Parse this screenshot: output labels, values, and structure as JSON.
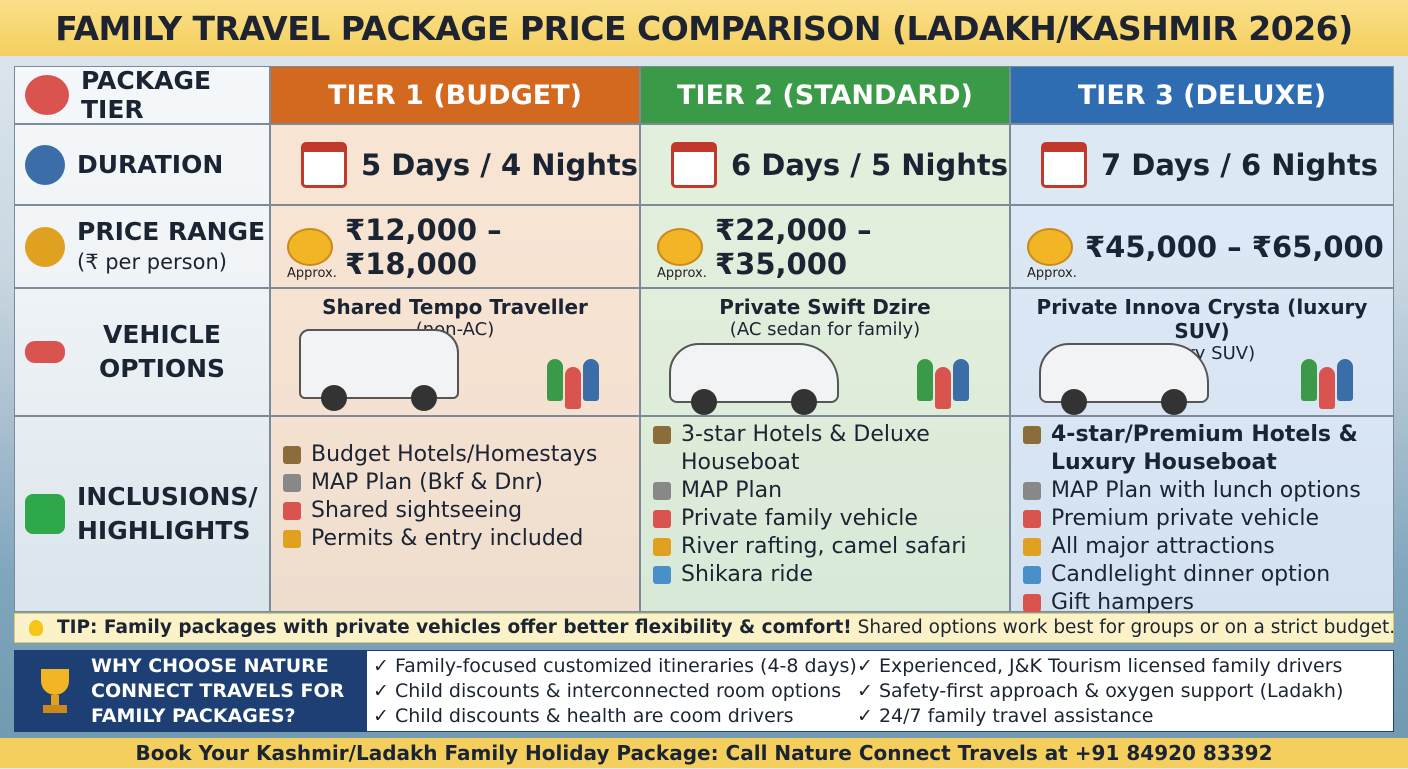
{
  "title": "FAMILY TRAVEL PACKAGE PRICE COMPARISON (LADAKH/KASHMIR 2026)",
  "row_labels": {
    "tier": "PACKAGE TIER",
    "duration": "DURATION",
    "price": "PRICE RANGE",
    "price_note": "(₹ per person)",
    "vehicle": "VEHICLE OPTIONS",
    "inclusions": "INCLUSIONS/ HIGHLIGHTS"
  },
  "tiers": [
    {
      "name": "TIER 1 (BUDGET)",
      "duration": "5 Days / 4 Nights",
      "price": "₹12,000 – ₹18,000",
      "price_note": "Approx.",
      "vehicle": "Shared Tempo Traveller",
      "vehicle_note": "(non-AC)",
      "inclusions": [
        "Budget Hotels/Homestays",
        "MAP Plan (Bkf & Dnr)",
        "Shared sightseeing",
        "Permits & entry included"
      ]
    },
    {
      "name": "TIER 2 (STANDARD)",
      "duration": "6 Days / 5 Nights",
      "price": "₹22,000 – ₹35,000",
      "price_note": "Approx.",
      "vehicle": "Private Swift Dzire",
      "vehicle_note": "(AC sedan for family)",
      "inclusions": [
        "3-star Hotels & Deluxe Houseboat",
        "MAP Plan",
        "Private family vehicle",
        "River rafting, camel safari",
        "Shikara ride"
      ]
    },
    {
      "name": "TIER 3 (DELUXE)",
      "duration": "7 Days / 6 Nights",
      "price": "₹45,000 – ₹65,000",
      "price_note": "Approx.",
      "vehicle": "Private Innova Crysta (luxury SUV)",
      "vehicle_note": "luxury SUV)",
      "inclusions": [
        "4-star/Premium Hotels & Luxury Houseboat",
        "MAP Plan with lunch options",
        "Premium private vehicle",
        "All major attractions",
        "Candlelight dinner option",
        "Gift hampers"
      ]
    }
  ],
  "tip": {
    "bold": "TIP: Family packages with private vehicles offer better flexibility & comfort!",
    "text": "Shared options work best for groups or on a strict budget."
  },
  "why": {
    "heading": "WHY CHOOSE NATURE CONNECT TRAVELS FOR FAMILY PACKAGES?",
    "items": [
      "✓ Family-focused customized itineraries (4-8 days)",
      "✓ Child discounts & interconnected room options",
      "✓ Child discounts & health are coom drivers",
      "✓ Experienced, J&K Tourism licensed family drivers",
      "✓ Safety-first approach & oxygen support (Ladakh)",
      "✓ 24/7 family travel assistance"
    ]
  },
  "footer": "Book Your Kashmir/Ladakh Family Holiday Package: Call Nature Connect Travels at +91 84920 83392"
}
